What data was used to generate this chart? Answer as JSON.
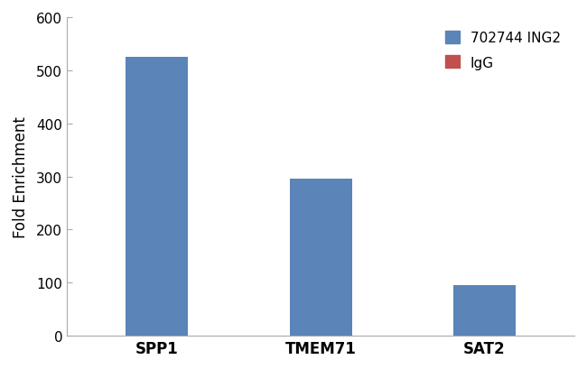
{
  "categories": [
    "SPP1",
    "TMEM71",
    "SAT2"
  ],
  "ing2_values": [
    525,
    296,
    96
  ],
  "igg_values": [
    0,
    0,
    0
  ],
  "bar_color_ing2": "#5B84B8",
  "bar_color_igg": "#C0504D",
  "ylabel": "Fold Enrichment",
  "ylim": [
    0,
    600
  ],
  "yticks": [
    0,
    100,
    200,
    300,
    400,
    500,
    600
  ],
  "legend_labels": [
    "702744 ING2",
    "IgG"
  ],
  "background_color": "#ffffff",
  "bar_width": 0.38,
  "figsize": [
    6.5,
    4.1
  ],
  "dpi": 100
}
